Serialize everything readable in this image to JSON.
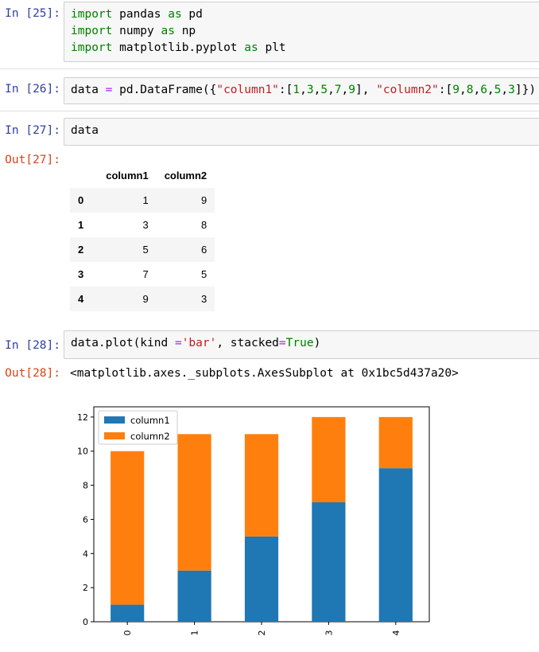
{
  "cells": [
    {
      "prompt": "In [25]:",
      "lines": [
        [
          {
            "t": "import",
            "c": "kw"
          },
          {
            "t": " pandas "
          },
          {
            "t": "as",
            "c": "kw"
          },
          {
            "t": " pd"
          }
        ],
        [
          {
            "t": "import",
            "c": "kw"
          },
          {
            "t": " numpy "
          },
          {
            "t": "as",
            "c": "kw"
          },
          {
            "t": " np"
          }
        ],
        [
          {
            "t": "import",
            "c": "kw"
          },
          {
            "t": " matplotlib.pyplot "
          },
          {
            "t": "as",
            "c": "kw"
          },
          {
            "t": " plt"
          }
        ]
      ]
    },
    {
      "prompt": "In [26]:",
      "lines": [
        [
          {
            "t": "data "
          },
          {
            "t": "=",
            "c": "op"
          },
          {
            "t": " pd.DataFrame({"
          },
          {
            "t": "\"column1\"",
            "c": "str"
          },
          {
            "t": ":["
          },
          {
            "t": "1",
            "c": "num"
          },
          {
            "t": ","
          },
          {
            "t": "3",
            "c": "num"
          },
          {
            "t": ","
          },
          {
            "t": "5",
            "c": "num"
          },
          {
            "t": ","
          },
          {
            "t": "7",
            "c": "num"
          },
          {
            "t": ","
          },
          {
            "t": "9",
            "c": "num"
          },
          {
            "t": "], "
          },
          {
            "t": "\"column2\"",
            "c": "str"
          },
          {
            "t": ":["
          },
          {
            "t": "9",
            "c": "num"
          },
          {
            "t": ","
          },
          {
            "t": "8",
            "c": "num"
          },
          {
            "t": ","
          },
          {
            "t": "6",
            "c": "num"
          },
          {
            "t": ","
          },
          {
            "t": "5",
            "c": "num"
          },
          {
            "t": ","
          },
          {
            "t": "3",
            "c": "num"
          },
          {
            "t": "]})"
          }
        ]
      ]
    },
    {
      "prompt": "In [27]:",
      "lines": [
        [
          {
            "t": "data"
          }
        ]
      ]
    },
    {
      "prompt": "In [28]:",
      "lines": [
        [
          {
            "t": "data.plot(kind "
          },
          {
            "t": "=",
            "c": "op"
          },
          {
            "t": "'bar'",
            "c": "str"
          },
          {
            "t": ", stacked"
          },
          {
            "t": "=",
            "c": "op"
          },
          {
            "t": "True",
            "c": "kw"
          },
          {
            "t": ")"
          }
        ]
      ]
    }
  ],
  "out27": {
    "prompt": "Out[27]:",
    "columns": [
      "",
      "column1",
      "column2"
    ],
    "rows": [
      {
        "index": "0",
        "column1": "1",
        "column2": "9"
      },
      {
        "index": "1",
        "column1": "3",
        "column2": "8"
      },
      {
        "index": "2",
        "column1": "5",
        "column2": "6"
      },
      {
        "index": "3",
        "column1": "7",
        "column2": "5"
      },
      {
        "index": "4",
        "column1": "9",
        "column2": "3"
      }
    ]
  },
  "out28": {
    "prompt": "Out[28]:",
    "text": "<matplotlib.axes._subplots.AxesSubplot at 0x1bc5d437a20>"
  },
  "chart_data": {
    "type": "bar",
    "stacked": true,
    "categories": [
      "0",
      "1",
      "2",
      "3",
      "4"
    ],
    "series": [
      {
        "name": "column1",
        "values": [
          1,
          3,
          5,
          7,
          9
        ],
        "color": "#1f77b4"
      },
      {
        "name": "column2",
        "values": [
          9,
          8,
          6,
          5,
          3
        ],
        "color": "#ff7f0e"
      }
    ],
    "ylim": [
      0,
      12.6
    ],
    "yticks": [
      0,
      2,
      4,
      6,
      8,
      10,
      12
    ],
    "legend_position": "top-left",
    "grid": false,
    "title": "",
    "xlabel": "",
    "ylabel": ""
  }
}
